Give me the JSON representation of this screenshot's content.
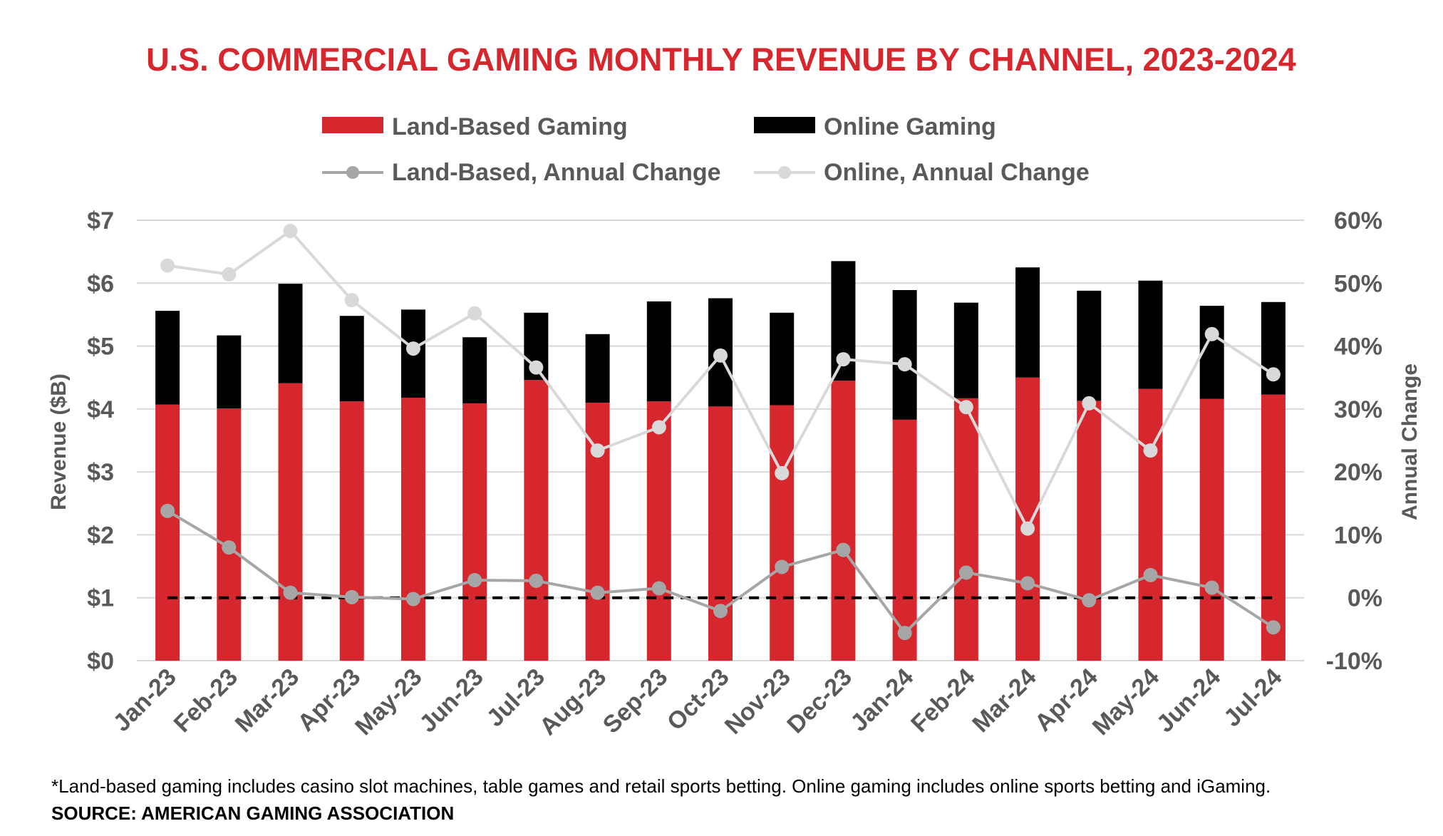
{
  "chart_data": {
    "type": "bar",
    "title": "U.S. COMMERCIAL GAMING MONTHLY REVENUE BY CHANNEL, 2023-2024",
    "categories": [
      "Jan-23",
      "Feb-23",
      "Mar-23",
      "Apr-23",
      "May-23",
      "Jun-23",
      "Jul-23",
      "Aug-23",
      "Sep-23",
      "Oct-23",
      "Nov-23",
      "Dec-23",
      "Jan-24",
      "Feb-24",
      "Mar-24",
      "Apr-24",
      "May-24",
      "Jun-24",
      "Jul-24"
    ],
    "series": [
      {
        "name": "Land-Based Gaming",
        "kind": "stacked-bar",
        "axis": "left",
        "color": "#d7272e",
        "values": [
          4.07,
          4.01,
          4.41,
          4.12,
          4.18,
          4.09,
          4.46,
          4.1,
          4.12,
          4.04,
          4.06,
          4.45,
          3.83,
          4.17,
          4.5,
          4.13,
          4.32,
          4.16,
          4.23
        ]
      },
      {
        "name": "Online Gaming",
        "kind": "stacked-bar",
        "axis": "left",
        "color": "#000000",
        "values": [
          1.49,
          1.16,
          1.58,
          1.36,
          1.4,
          1.05,
          1.07,
          1.09,
          1.59,
          1.72,
          1.47,
          1.9,
          2.06,
          1.52,
          1.75,
          1.75,
          1.72,
          1.48,
          1.47
        ]
      },
      {
        "name": "Land-Based, Annual Change",
        "kind": "line",
        "axis": "right",
        "color": "#a6a6a6",
        "values": [
          13.8,
          8.0,
          0.8,
          0.1,
          -0.2,
          2.8,
          2.7,
          0.8,
          1.5,
          -2.1,
          4.9,
          7.6,
          -5.6,
          4.0,
          2.3,
          -0.4,
          3.6,
          1.6,
          -4.7
        ]
      },
      {
        "name": "Online, Annual Change",
        "kind": "line",
        "axis": "right",
        "color": "#d9d9d9",
        "values": [
          52.8,
          51.4,
          58.3,
          47.3,
          39.6,
          45.2,
          36.6,
          23.4,
          27.1,
          38.5,
          19.8,
          37.9,
          37.1,
          30.3,
          11.0,
          30.9,
          23.4,
          41.9,
          35.5
        ]
      }
    ],
    "y_left": {
      "label": "Revenue ($B)",
      "min": 0,
      "max": 7,
      "ticks": [
        "$0",
        "$1",
        "$2",
        "$3",
        "$4",
        "$5",
        "$6",
        "$7"
      ]
    },
    "y_right": {
      "label": "Annual Change",
      "min": -10,
      "max": 60,
      "ticks": [
        "-10%",
        "0%",
        "10%",
        "20%",
        "30%",
        "40%",
        "50%",
        "60%"
      ]
    },
    "reference_line": {
      "axis": "right",
      "value": 0,
      "style": "dashed",
      "color": "#000000"
    },
    "grid": true,
    "legend_position": "top",
    "title_color": "#d7272e",
    "axis_text_color": "#595959"
  },
  "footnote": "*Land-based gaming includes casino slot machines, table games and retail sports betting. Online gaming includes online sports betting and iGaming.",
  "source": "SOURCE: AMERICAN GAMING ASSOCIATION"
}
